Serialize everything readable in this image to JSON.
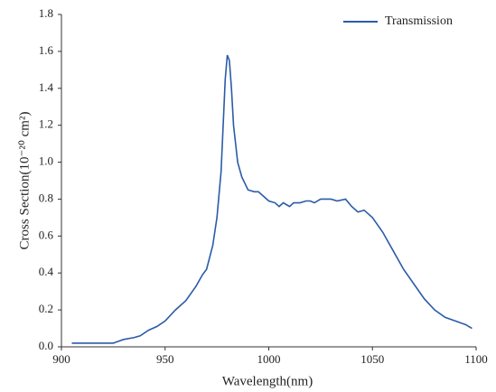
{
  "chart_data": {
    "type": "line",
    "x_label": "Wavelength(nm)",
    "y_label": "Cross Section(10⁻²⁰ cm²)",
    "x": [
      905,
      925,
      930,
      935,
      938,
      942,
      946,
      950,
      955,
      960,
      965,
      968,
      970,
      973,
      975,
      977,
      978,
      979,
      980,
      981,
      982,
      983,
      985,
      987,
      990,
      993,
      995,
      998,
      1000,
      1003,
      1005,
      1007,
      1010,
      1012,
      1015,
      1018,
      1020,
      1022,
      1025,
      1030,
      1033,
      1037,
      1040,
      1043,
      1046,
      1050,
      1055,
      1060,
      1065,
      1070,
      1075,
      1080,
      1085,
      1090,
      1095,
      1098
    ],
    "series": [
      {
        "name": "Transmission",
        "color": "#2b5ba8",
        "values": [
          0.02,
          0.02,
          0.04,
          0.05,
          0.06,
          0.09,
          0.11,
          0.14,
          0.2,
          0.25,
          0.33,
          0.39,
          0.42,
          0.55,
          0.7,
          0.95,
          1.2,
          1.45,
          1.58,
          1.55,
          1.4,
          1.2,
          1.0,
          0.92,
          0.85,
          0.84,
          0.84,
          0.81,
          0.79,
          0.78,
          0.76,
          0.78,
          0.76,
          0.78,
          0.78,
          0.79,
          0.79,
          0.78,
          0.8,
          0.8,
          0.79,
          0.8,
          0.76,
          0.73,
          0.74,
          0.7,
          0.62,
          0.52,
          0.42,
          0.34,
          0.26,
          0.2,
          0.16,
          0.14,
          0.12,
          0.1
        ]
      }
    ],
    "xlim": [
      900,
      1100
    ],
    "xticks": [
      900,
      950,
      1000,
      1050,
      1100
    ],
    "ylim": [
      0,
      1.8
    ],
    "yticks": [
      {
        "value": 0,
        "label": "0.0"
      },
      0.2,
      0.4,
      0.6,
      0.8,
      {
        "value": 1,
        "label": "1.0"
      },
      1.2,
      1.4,
      1.6,
      1.8
    ],
    "legend": "top-right",
    "grid": false
  }
}
